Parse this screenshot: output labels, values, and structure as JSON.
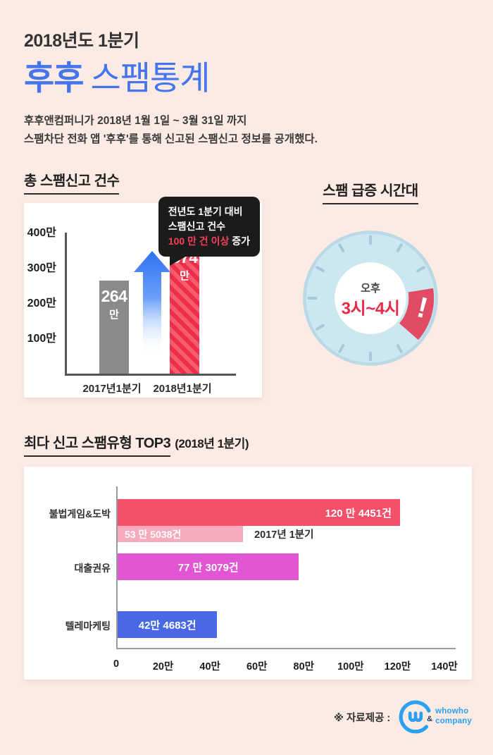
{
  "header": {
    "eyebrow": "2018년도 1분기",
    "title_brand": "후후",
    "title_rest": "스팸통계",
    "desc_line1": "후후앤컴퍼니가 2018년 1월 1일 ~ 3월 31일 까지",
    "desc_line2": "스팸차단 전화 앱 '후후'를 통해 신고된 스팸신고 정보를 공개했다."
  },
  "section_total": {
    "heading": "총 스팸신고 건수",
    "tooltip": {
      "line1": "전년도 1분기 대비",
      "line2": "스팸신고 건수",
      "highlight": "100 만 건 이상",
      "suffix": " 증가"
    }
  },
  "section_time": {
    "heading": "스팸 급증 시간대",
    "clock_label_top": "오후",
    "clock_label_time": "3시~4시",
    "alert_mark": "!",
    "colors": {
      "face": "#cde7f1",
      "ticks": "#a4cadb",
      "wedge": "#e14b63",
      "time_text": "#e82a48"
    }
  },
  "section_top3": {
    "heading": "최다 신고 스팸유형 TOP3",
    "heading_sub": "(2018년 1분기)"
  },
  "footer": {
    "credit": "※ 자료제공 :",
    "logo_amp": "&",
    "logo_line1": "whowho",
    "logo_line2": "company"
  },
  "chart_data": [
    {
      "type": "bar",
      "title": "총 스팸신고 건수",
      "categories": [
        "2017년1분기",
        "2018년1분기"
      ],
      "values": [
        264,
        374
      ],
      "unit": "만",
      "value_labels": [
        {
          "num": "264",
          "unit": "만"
        },
        {
          "num": "374",
          "unit": "만"
        }
      ],
      "yticks": [
        {
          "label": "400만",
          "value": 400
        },
        {
          "label": "300만",
          "value": 300
        },
        {
          "label": "200만",
          "value": 200
        },
        {
          "label": "100만",
          "value": 100
        }
      ],
      "ylim": [
        0,
        400
      ],
      "grid": false,
      "bar_colors": [
        "#8a8a8a",
        "#ee2e48"
      ],
      "annotation": "전년도 1분기 대비 스팸신고 건수 100 만 건 이상 증가"
    },
    {
      "type": "bar",
      "orientation": "horizontal",
      "title": "최다 신고 스팸유형 TOP3 (2018년 1분기)",
      "categories": [
        "불법게임&도박",
        "대출권유",
        "텔레마케팅"
      ],
      "series": [
        {
          "name": "2018년 1분기",
          "values": [
            1204451,
            773079,
            424683
          ],
          "labels": [
            "120 만 4451건",
            "77 만 3079건",
            "42만 4683건"
          ]
        },
        {
          "name": "2017년 1분기",
          "values": [
            535038,
            null,
            null
          ],
          "labels": [
            "53 만 5038건",
            null,
            null
          ]
        }
      ],
      "xticks": [
        {
          "label": "0",
          "value": 0
        },
        {
          "label": "20만",
          "value": 200000
        },
        {
          "label": "40만",
          "value": 400000
        },
        {
          "label": "60만",
          "value": 600000
        },
        {
          "label": "80만",
          "value": 800000
        },
        {
          "label": "100만",
          "value": 1000000
        },
        {
          "label": "120만",
          "value": 1200000
        },
        {
          "label": "140만",
          "value": 1400000
        }
      ],
      "xlim": [
        0,
        1400000
      ],
      "grid": false,
      "colors": {
        "main": [
          "#f3506a",
          "#e156d3",
          "#4a68e6"
        ],
        "sub": "#f6abbc"
      }
    }
  ]
}
